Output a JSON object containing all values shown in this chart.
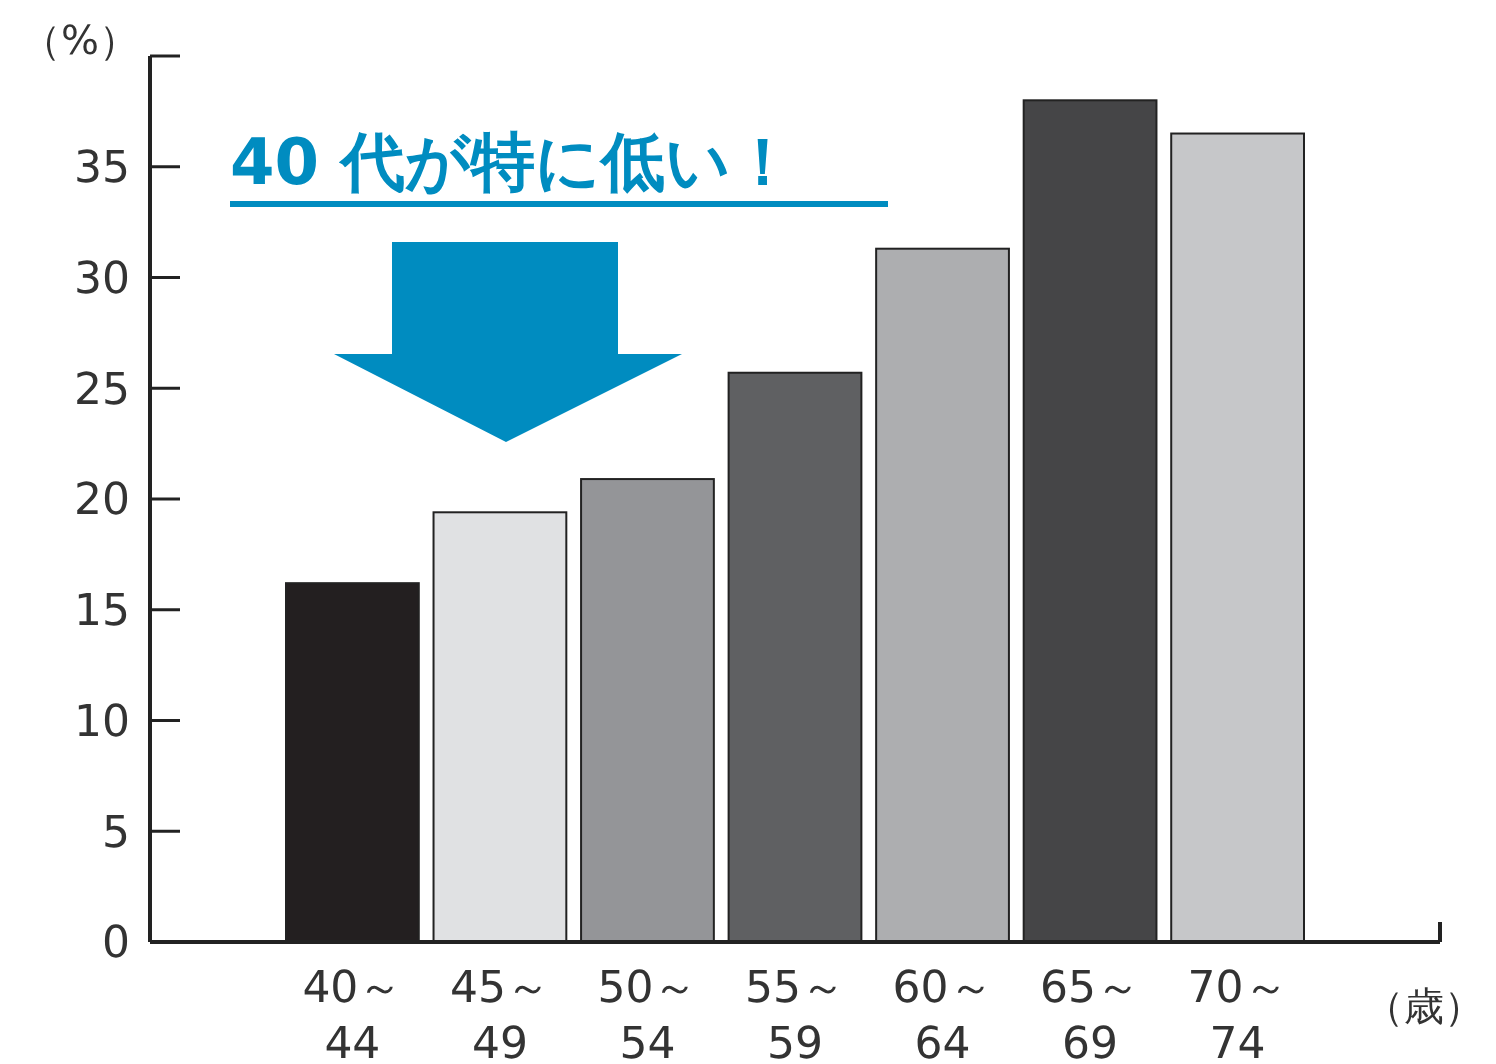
{
  "chart_data": {
    "type": "bar",
    "ylabel": "（%）",
    "xlabel": "（歳）",
    "categories": [
      "40～\n44",
      "45～\n49",
      "50～\n54",
      "55～\n59",
      "60～\n64",
      "65～\n69",
      "70～\n74"
    ],
    "values": [
      16.2,
      19.4,
      20.9,
      25.7,
      31.3,
      38.0,
      36.5
    ],
    "colors": [
      "#231f20",
      "#e0e1e3",
      "#949598",
      "#5f6062",
      "#adaeb0",
      "#454547",
      "#c6c7c9"
    ],
    "ylim": [
      0,
      40
    ],
    "yticks": [
      0,
      5,
      10,
      15,
      20,
      25,
      30,
      35,
      {
        "value": 40,
        "label": null
      }
    ],
    "grid": false,
    "annotations": [
      "40 代が特に低い！"
    ]
  }
}
